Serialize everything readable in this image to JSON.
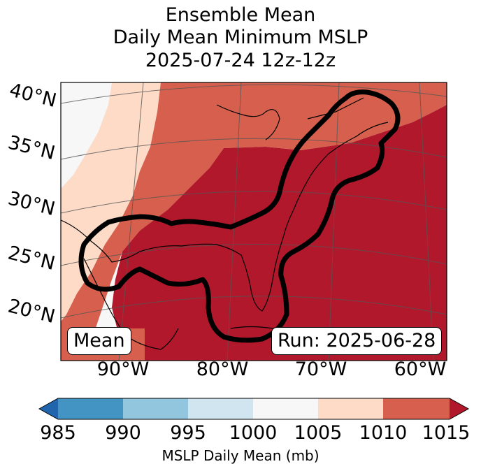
{
  "title": {
    "line1": "Ensemble Mean",
    "line2": "Daily Mean Minimum MSLP",
    "line3": "2025-07-24 12z-12z"
  },
  "map": {
    "lat_labels": [
      "40°N",
      "35°N",
      "30°N",
      "25°N",
      "20°N"
    ],
    "lon_labels": [
      "90°W",
      "80°W",
      "70°W",
      "60°W"
    ],
    "mean_label": "Mean",
    "run_label": "Run: 2025-06-28"
  },
  "colorbar": {
    "ticks": [
      "985",
      "990",
      "995",
      "1000",
      "1005",
      "1010",
      "1015"
    ],
    "label": "MSLP Daily Mean (mb)",
    "colors": [
      "#2166ac",
      "#4393c3",
      "#92c5de",
      "#d1e5f0",
      "#f7f7f7",
      "#fddbc7",
      "#d6604d",
      "#b2182b"
    ]
  },
  "field_colors": {
    "c1000_1005": "#f7f7f7",
    "c1005_1010": "#fddbc7",
    "c1010_1015": "#d6604d",
    "c1015_plus": "#b2182b"
  }
}
